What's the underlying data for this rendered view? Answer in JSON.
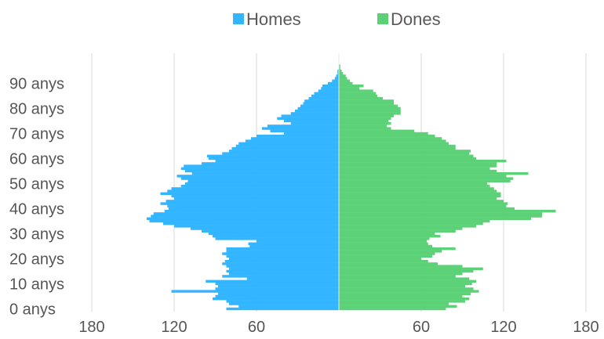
{
  "chart_data": {
    "type": "bar",
    "orientation": "horizontal-diverging",
    "title": "",
    "xlabel": "",
    "ylabel": "",
    "legend": {
      "position": "top",
      "items": [
        {
          "name": "Homes",
          "color": "#33b5ff"
        },
        {
          "name": "Dones",
          "color": "#5cd178"
        }
      ]
    },
    "x_ticks": [
      {
        "label": "180",
        "value": -180
      },
      {
        "label": "120",
        "value": -120
      },
      {
        "label": "60",
        "value": -60
      },
      {
        "label": "60",
        "value": 60
      },
      {
        "label": "120",
        "value": 120
      },
      {
        "label": "180",
        "value": 180
      }
    ],
    "xlim": [
      -180,
      180
    ],
    "y_ticks": [
      {
        "label": "0 anys",
        "value": 0
      },
      {
        "label": "10 anys",
        "value": 10
      },
      {
        "label": "20 anys",
        "value": 20
      },
      {
        "label": "30 anys",
        "value": 30
      },
      {
        "label": "40 anys",
        "value": 40
      },
      {
        "label": "50 anys",
        "value": 50
      },
      {
        "label": "60 anys",
        "value": 60
      },
      {
        "label": "70 anys",
        "value": 70
      },
      {
        "label": "80 anys",
        "value": 80
      },
      {
        "label": "90 anys",
        "value": 90
      }
    ],
    "ylim": [
      0,
      99
    ],
    "grid": true,
    "ages": [
      0,
      1,
      2,
      3,
      4,
      5,
      6,
      7,
      8,
      9,
      10,
      11,
      12,
      13,
      14,
      15,
      16,
      17,
      18,
      19,
      20,
      21,
      22,
      23,
      24,
      25,
      26,
      27,
      28,
      29,
      30,
      31,
      32,
      33,
      34,
      35,
      36,
      37,
      38,
      39,
      40,
      41,
      42,
      43,
      44,
      45,
      46,
      47,
      48,
      49,
      50,
      51,
      52,
      53,
      54,
      55,
      56,
      57,
      58,
      59,
      60,
      61,
      62,
      63,
      64,
      65,
      66,
      67,
      68,
      69,
      70,
      71,
      72,
      73,
      74,
      75,
      76,
      77,
      78,
      79,
      80,
      81,
      82,
      83,
      84,
      85,
      86,
      87,
      88,
      89,
      90,
      91,
      92,
      93,
      94,
      95,
      96,
      97,
      98,
      99
    ],
    "series": [
      {
        "name": "Homes",
        "color": "#33b5ff",
        "values": [
          82,
          73,
          80,
          82,
          92,
          90,
          88,
          122,
          90,
          88,
          90,
          97,
          67,
          85,
          80,
          82,
          80,
          82,
          85,
          83,
          80,
          82,
          85,
          82,
          82,
          65,
          66,
          60,
          90,
          92,
          95,
          100,
          108,
          120,
          128,
          138,
          140,
          137,
          135,
          127,
          124,
          125,
          130,
          126,
          120,
          122,
          130,
          125,
          122,
          115,
          112,
          110,
          115,
          118,
          107,
          112,
          115,
          113,
          100,
          90,
          95,
          96,
          85,
          80,
          78,
          75,
          73,
          68,
          64,
          60,
          40,
          50,
          56,
          52,
          35,
          40,
          45,
          42,
          35,
          32,
          30,
          28,
          26,
          25,
          22,
          20,
          18,
          15,
          13,
          12,
          8,
          5,
          3,
          2,
          1,
          1,
          0,
          0,
          0,
          0
        ]
      },
      {
        "name": "Dones",
        "color": "#5cd178",
        "values": [
          78,
          86,
          80,
          92,
          95,
          90,
          96,
          102,
          98,
          92,
          97,
          100,
          95,
          85,
          90,
          98,
          105,
          90,
          72,
          65,
          60,
          68,
          70,
          75,
          85,
          68,
          65,
          64,
          66,
          74,
          70,
          85,
          90,
          100,
          105,
          110,
          140,
          148,
          148,
          158,
          128,
          122,
          123,
          120,
          115,
          118,
          118,
          115,
          113,
          110,
          108,
          125,
          127,
          122,
          138,
          115,
          110,
          115,
          115,
          122,
          100,
          98,
          95,
          96,
          85,
          85,
          80,
          78,
          75,
          70,
          65,
          55,
          38,
          35,
          38,
          36,
          38,
          40,
          45,
          45,
          45,
          43,
          40,
          40,
          32,
          28,
          27,
          25,
          15,
          18,
          10,
          8,
          6,
          5,
          3,
          2,
          1,
          1,
          0,
          0
        ]
      }
    ]
  }
}
